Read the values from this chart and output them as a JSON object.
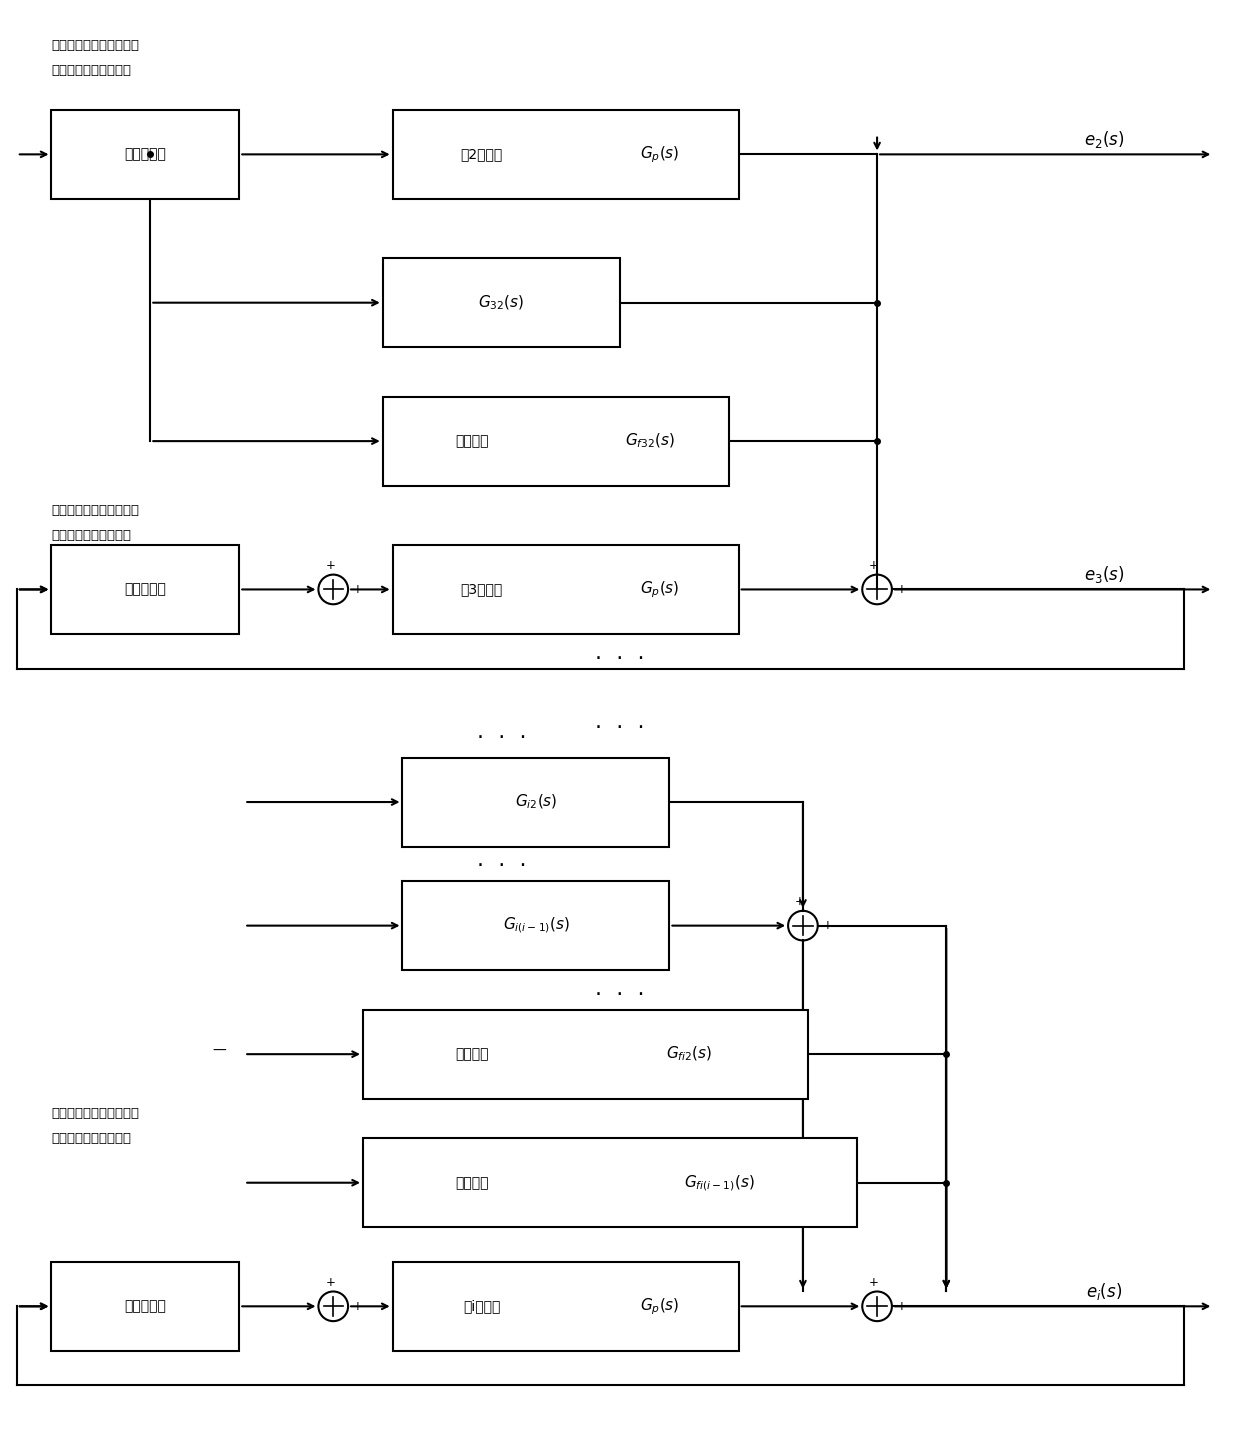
{
  "figsize": [
    12.4,
    14.33
  ],
  "dpi": 100,
  "bg_color": "#ffffff",
  "lc": "#000000",
  "lw": 1.5,
  "note1_line1": "模糊控制器根据当前误差",
  "note1_line2": "自动选择模糊控制参数",
  "note2_line1": "模糊控制器根据当前误差",
  "note2_line2": "自动选择模糊控制参数",
  "note3_line1": "模糊控制器根据当前误差",
  "note3_line2": "自动选择模糊控制参数",
  "fuzzy_label": "模糊控制器",
  "model2_label": "第2色模型",
  "model3_label": "第3色模型",
  "modeli_label": "第i色模型",
  "feedfwd_label": "前馈补偿",
  "gp_label": "$G_p(s)$",
  "g32_label": "$G_{32}(s)$",
  "gf32_label": "$G_{f32}(s)$",
  "gi2_label": "$G_{i2}(s)$",
  "gii1_label": "$G_{i(i-1)}(s)$",
  "gfi2_label": "$G_{fi2}(s)$",
  "gfii1_label": "$G_{fi(i-1)}(s)$",
  "e2_label": "$e_2(s)$",
  "e3_label": "$e_3(s)$",
  "ei_label": "$e_i(s)$",
  "dots": "· · ·"
}
